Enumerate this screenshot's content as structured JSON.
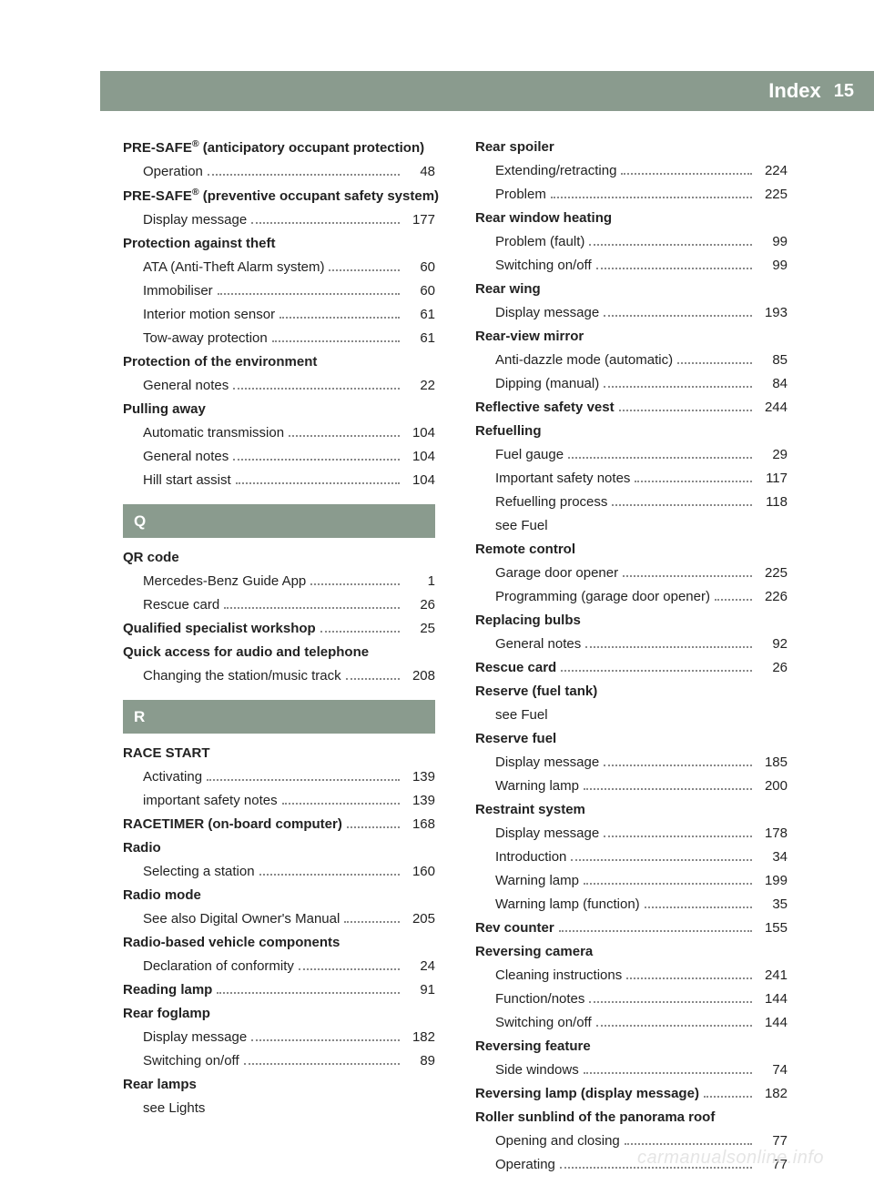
{
  "header": {
    "title": "Index",
    "page": "15"
  },
  "watermark": "carmanualsonline.info",
  "sections": {
    "Q": "Q",
    "R": "R"
  },
  "col1": [
    {
      "bold": true,
      "label_html": "PRE-SAFE<span class='sup'>®</span> (anticipatory occupant protection)"
    },
    {
      "sub": true,
      "label": "Operation",
      "page": "48"
    },
    {
      "bold": true,
      "label_html": "PRE-SAFE<span class='sup'>®</span> (preventive occupant safety system)"
    },
    {
      "sub": true,
      "label": "Display message",
      "page": "177"
    },
    {
      "bold": true,
      "label": "Protection against theft"
    },
    {
      "sub": true,
      "label": "ATA (Anti-Theft Alarm system)",
      "page": "60"
    },
    {
      "sub": true,
      "label": "Immobiliser",
      "page": "60"
    },
    {
      "sub": true,
      "label": "Interior motion sensor",
      "page": "61"
    },
    {
      "sub": true,
      "label": "Tow-away protection",
      "page": "61"
    },
    {
      "bold": true,
      "label": "Protection of the environment"
    },
    {
      "sub": true,
      "label": "General notes",
      "page": "22"
    },
    {
      "bold": true,
      "label": "Pulling away"
    },
    {
      "sub": true,
      "label": "Automatic transmission",
      "page": "104"
    },
    {
      "sub": true,
      "label": "General notes",
      "page": "104"
    },
    {
      "sub": true,
      "label": "Hill start assist",
      "page": "104"
    },
    {
      "section": "Q"
    },
    {
      "bold": true,
      "label": "QR code"
    },
    {
      "sub": true,
      "label": "Mercedes-Benz Guide App",
      "page": "1"
    },
    {
      "sub": true,
      "label": "Rescue card",
      "page": "26"
    },
    {
      "bold": true,
      "label": "Qualified specialist workshop",
      "page": "25"
    },
    {
      "bold": true,
      "label": "Quick access for audio and telephone"
    },
    {
      "sub": true,
      "label": "Changing the station/music track",
      "page": "208"
    },
    {
      "section": "R"
    },
    {
      "bold": true,
      "label": "RACE START"
    },
    {
      "sub": true,
      "label": "Activating",
      "page": "139"
    },
    {
      "sub": true,
      "label": "important safety notes",
      "page": "139"
    },
    {
      "bold": true,
      "label": "RACETIMER (on-board computer)",
      "page": "168"
    },
    {
      "bold": true,
      "label": "Radio"
    },
    {
      "sub": true,
      "label": "Selecting a station",
      "page": "160"
    },
    {
      "bold": true,
      "label": "Radio mode"
    },
    {
      "sub": true,
      "label": "See also Digital Owner's Manual",
      "page": "205"
    },
    {
      "bold": true,
      "label": "Radio-based vehicle components"
    },
    {
      "sub": true,
      "label": "Declaration of conformity",
      "page": "24"
    },
    {
      "bold": true,
      "label": "Reading lamp",
      "page": "91"
    },
    {
      "bold": true,
      "label": "Rear foglamp"
    },
    {
      "sub": true,
      "label": "Display message",
      "page": "182"
    },
    {
      "sub": true,
      "label": "Switching on/off",
      "page": "89"
    },
    {
      "bold": true,
      "label": "Rear lamps"
    },
    {
      "sub": true,
      "label": "see Lights",
      "nodots": true
    }
  ],
  "col2": [
    {
      "bold": true,
      "label": "Rear spoiler"
    },
    {
      "sub": true,
      "label": "Extending/retracting",
      "page": "224"
    },
    {
      "sub": true,
      "label": "Problem",
      "page": "225"
    },
    {
      "bold": true,
      "label": "Rear window heating"
    },
    {
      "sub": true,
      "label": "Problem (fault)",
      "page": "99"
    },
    {
      "sub": true,
      "label": "Switching on/off",
      "page": "99"
    },
    {
      "bold": true,
      "label": "Rear wing"
    },
    {
      "sub": true,
      "label": "Display message",
      "page": "193"
    },
    {
      "bold": true,
      "label": "Rear-view mirror"
    },
    {
      "sub": true,
      "label": "Anti-dazzle mode (automatic)",
      "page": "85"
    },
    {
      "sub": true,
      "label": "Dipping (manual)",
      "page": "84"
    },
    {
      "bold": true,
      "label": "Reflective safety vest",
      "page": "244"
    },
    {
      "bold": true,
      "label": "Refuelling"
    },
    {
      "sub": true,
      "label": "Fuel gauge",
      "page": "29"
    },
    {
      "sub": true,
      "label": "Important safety notes",
      "page": "117"
    },
    {
      "sub": true,
      "label": "Refuelling process",
      "page": "118"
    },
    {
      "sub": true,
      "label": "see Fuel",
      "nodots": true
    },
    {
      "bold": true,
      "label": "Remote control"
    },
    {
      "sub": true,
      "label": "Garage door opener",
      "page": "225"
    },
    {
      "sub": true,
      "label": "Programming (garage door opener)",
      "page": "226"
    },
    {
      "bold": true,
      "label": "Replacing bulbs"
    },
    {
      "sub": true,
      "label": "General notes",
      "page": "92"
    },
    {
      "bold": true,
      "label": "Rescue card",
      "page": "26"
    },
    {
      "bold": true,
      "label": "Reserve (fuel tank)"
    },
    {
      "sub": true,
      "label": "see Fuel",
      "nodots": true
    },
    {
      "bold": true,
      "label": "Reserve fuel"
    },
    {
      "sub": true,
      "label": "Display message",
      "page": "185"
    },
    {
      "sub": true,
      "label": "Warning lamp",
      "page": "200"
    },
    {
      "bold": true,
      "label": "Restraint system"
    },
    {
      "sub": true,
      "label": "Display message",
      "page": "178"
    },
    {
      "sub": true,
      "label": "Introduction",
      "page": "34"
    },
    {
      "sub": true,
      "label": "Warning lamp",
      "page": "199"
    },
    {
      "sub": true,
      "label": "Warning lamp (function)",
      "page": "35"
    },
    {
      "bold": true,
      "label": "Rev counter",
      "page": "155"
    },
    {
      "bold": true,
      "label": "Reversing camera"
    },
    {
      "sub": true,
      "label": "Cleaning instructions",
      "page": "241"
    },
    {
      "sub": true,
      "label": "Function/notes",
      "page": "144"
    },
    {
      "sub": true,
      "label": "Switching on/off",
      "page": "144"
    },
    {
      "bold": true,
      "label": "Reversing feature"
    },
    {
      "sub": true,
      "label": "Side windows",
      "page": "74"
    },
    {
      "bold": true,
      "label": "Reversing lamp (display message)",
      "page": "182"
    },
    {
      "bold": true,
      "label": "Roller sunblind of the panorama roof"
    },
    {
      "sub": true,
      "label": "Opening and closing",
      "page": "77"
    },
    {
      "sub": true,
      "label": "Operating",
      "page": "77"
    }
  ]
}
